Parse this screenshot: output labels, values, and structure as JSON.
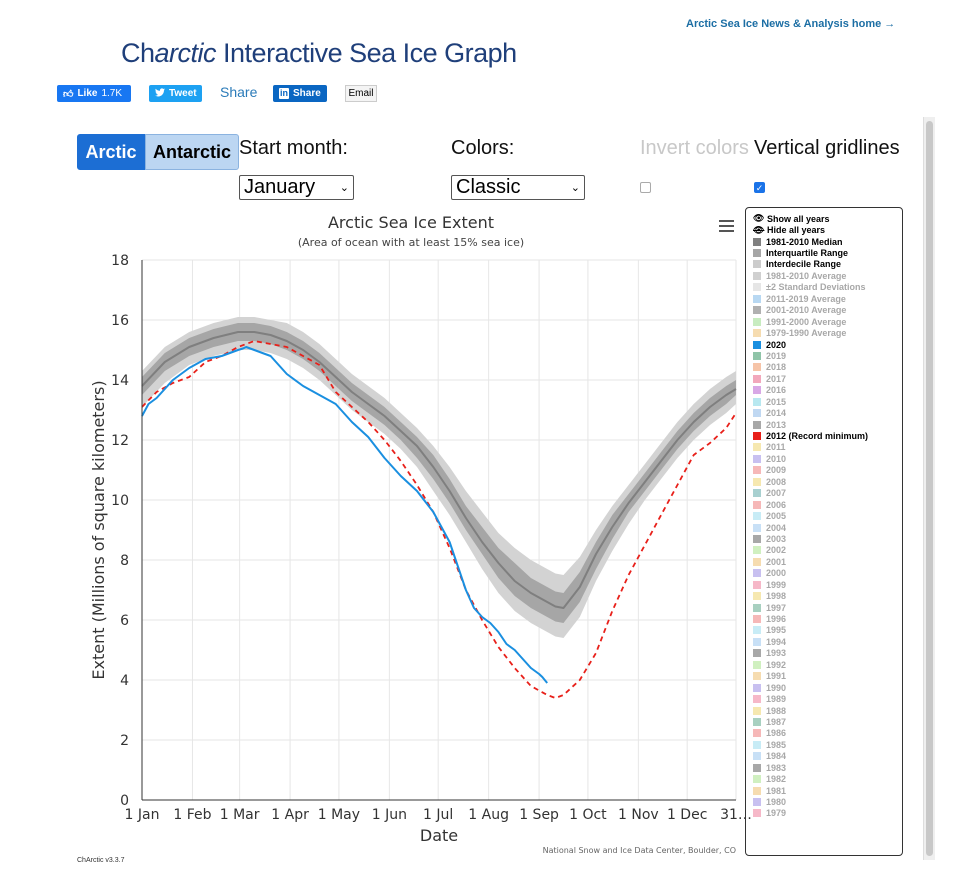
{
  "header": {
    "top_link": "Arctic Sea Ice News & Analysis home →",
    "logo_prefix": "Ch",
    "logo_italic": "arctic",
    "logo_suffix": " Interactive Sea Ice Graph"
  },
  "social": {
    "like_label": "Like",
    "like_count": "1.7K",
    "tweet_label": "Tweet",
    "share_text": "Share",
    "linkedin_label": "Share",
    "email_label": "Email"
  },
  "controls": {
    "arctic": "Arctic",
    "antarctic": "Antarctic",
    "start_month_label": "Start month:",
    "start_month_value": "January",
    "colors_label": "Colors:",
    "colors_value": "Classic",
    "invert_label": "Invert colors",
    "invert_checked": false,
    "gridlines_label": "Vertical gridlines",
    "gridlines_checked": true
  },
  "legend": {
    "show_all": "Show all years",
    "hide_all": "Hide all years",
    "items": [
      {
        "label": "1981-2010 Median",
        "color": "#808080",
        "active": true
      },
      {
        "label": "Interquartile Range",
        "color": "#a6a6a6",
        "active": true
      },
      {
        "label": "Interdecile Range",
        "color": "#cccccc",
        "active": true
      },
      {
        "label": "1981-2010 Average",
        "color": "#d0d0d0",
        "active": false
      },
      {
        "label": "±2 Standard Deviations",
        "color": "#e6e6e6",
        "active": false
      },
      {
        "label": "2011-2019 Average",
        "color": "#b8d8f2",
        "active": false
      },
      {
        "label": "2001-2010 Average",
        "color": "#b0b0b0",
        "active": false
      },
      {
        "label": "1991-2000 Average",
        "color": "#c8ecc0",
        "active": false
      },
      {
        "label": "1979-1990 Average",
        "color": "#f6dcb0",
        "active": false
      },
      {
        "label": "2020",
        "color": "#1a8fe0",
        "active": true
      },
      {
        "label": "2019",
        "color": "#8fc4a8",
        "active": false
      },
      {
        "label": "2018",
        "color": "#f6c4a8",
        "active": false
      },
      {
        "label": "2017",
        "color": "#f2a8bc",
        "active": false
      },
      {
        "label": "2016",
        "color": "#d8a8e6",
        "active": false
      },
      {
        "label": "2015",
        "color": "#b8e8f0",
        "active": false
      },
      {
        "label": "2014",
        "color": "#c0d8f2",
        "active": false
      },
      {
        "label": "2013",
        "color": "#a8a8a8",
        "active": false
      },
      {
        "label": "2012 (Record minimum)",
        "color": "#e8201a",
        "active": true
      },
      {
        "label": "2011",
        "color": "#f6e8b0",
        "active": false
      },
      {
        "label": "2010",
        "color": "#c8c0f0",
        "active": false
      },
      {
        "label": "2009",
        "color": "#f6b8b8",
        "active": false
      },
      {
        "label": "2008",
        "color": "#f6e8b0",
        "active": false
      },
      {
        "label": "2007",
        "color": "#a8d0d0",
        "active": false
      },
      {
        "label": "2006",
        "color": "#f6b8b8",
        "active": false
      },
      {
        "label": "2005",
        "color": "#c8ecf6",
        "active": false
      },
      {
        "label": "2004",
        "color": "#c8e0f6",
        "active": false
      },
      {
        "label": "2003",
        "color": "#a8a8a8",
        "active": false
      },
      {
        "label": "2002",
        "color": "#d0f0c0",
        "active": false
      },
      {
        "label": "2001",
        "color": "#f6dcb0",
        "active": false
      },
      {
        "label": "2000",
        "color": "#c8c0f0",
        "active": false
      },
      {
        "label": "1999",
        "color": "#f6b8c8",
        "active": false
      },
      {
        "label": "1998",
        "color": "#f6e8b0",
        "active": false
      },
      {
        "label": "1997",
        "color": "#a8d0c0",
        "active": false
      },
      {
        "label": "1996",
        "color": "#f6b8b8",
        "active": false
      },
      {
        "label": "1995",
        "color": "#c8ecf6",
        "active": false
      },
      {
        "label": "1994",
        "color": "#c8e0f6",
        "active": false
      },
      {
        "label": "1993",
        "color": "#a8a8a8",
        "active": false
      },
      {
        "label": "1992",
        "color": "#d0f0c0",
        "active": false
      },
      {
        "label": "1991",
        "color": "#f6dcb0",
        "active": false
      },
      {
        "label": "1990",
        "color": "#c8c0f0",
        "active": false
      },
      {
        "label": "1989",
        "color": "#f6b8c8",
        "active": false
      },
      {
        "label": "1988",
        "color": "#f6e8b0",
        "active": false
      },
      {
        "label": "1987",
        "color": "#a8d0c0",
        "active": false
      },
      {
        "label": "1986",
        "color": "#f6b8b8",
        "active": false
      },
      {
        "label": "1985",
        "color": "#c8ecf6",
        "active": false
      },
      {
        "label": "1984",
        "color": "#c8e0f6",
        "active": false
      },
      {
        "label": "1983",
        "color": "#a8a8a8",
        "active": false
      },
      {
        "label": "1982",
        "color": "#d0f0c0",
        "active": false
      },
      {
        "label": "1981",
        "color": "#f6dcb0",
        "active": false
      },
      {
        "label": "1980",
        "color": "#c8c0f0",
        "active": false
      },
      {
        "label": "1979",
        "color": "#f6b8c8",
        "active": false
      }
    ]
  },
  "footer": {
    "credit": "National Snow and Ice Data Center, Boulder, CO",
    "version": "ChArctic v3.3.7"
  },
  "chart_data": {
    "type": "line",
    "title": "Arctic Sea Ice Extent",
    "subtitle": "(Area of ocean with at least 15% sea ice)",
    "xlabel": "Date",
    "ylabel": "Extent (Millions of square kilometers)",
    "xlim": [
      1,
      366
    ],
    "ylim": [
      0,
      18
    ],
    "yticks": [
      0,
      2,
      4,
      6,
      8,
      10,
      12,
      14,
      16,
      18
    ],
    "xticks": [
      {
        "day": 1,
        "label": "1 Jan"
      },
      {
        "day": 32,
        "label": "1 Feb"
      },
      {
        "day": 61,
        "label": "1 Mar"
      },
      {
        "day": 92,
        "label": "1 Apr"
      },
      {
        "day": 122,
        "label": "1 May"
      },
      {
        "day": 153,
        "label": "1 Jun"
      },
      {
        "day": 183,
        "label": "1 Jul"
      },
      {
        "day": 214,
        "label": "1 Aug"
      },
      {
        "day": 245,
        "label": "1 Sep"
      },
      {
        "day": 275,
        "label": "1 Oct"
      },
      {
        "day": 306,
        "label": "1 Nov"
      },
      {
        "day": 336,
        "label": "1 Dec"
      },
      {
        "day": 366,
        "label": "31…"
      }
    ],
    "grid": true,
    "legend_placement": "right",
    "x": [
      1,
      15,
      30,
      45,
      60,
      70,
      80,
      90,
      100,
      110,
      120,
      130,
      140,
      150,
      160,
      170,
      180,
      190,
      200,
      210,
      220,
      230,
      240,
      250,
      255,
      260,
      270,
      280,
      290,
      300,
      310,
      320,
      330,
      340,
      350,
      360,
      366
    ],
    "series": [
      {
        "name": "1981-2010 Median",
        "color": "#7f7f7f",
        "values": [
          13.8,
          14.6,
          15.1,
          15.4,
          15.6,
          15.6,
          15.5,
          15.3,
          15.0,
          14.6,
          14.1,
          13.6,
          13.2,
          12.8,
          12.3,
          11.8,
          11.1,
          10.3,
          9.4,
          8.6,
          7.9,
          7.3,
          6.9,
          6.6,
          6.45,
          6.4,
          7.1,
          8.2,
          9.1,
          9.9,
          10.6,
          11.3,
          12.0,
          12.6,
          13.1,
          13.5,
          13.7
        ]
      },
      {
        "name": "Interquartile Range",
        "color": "#a6a6a6",
        "lower": [
          13.5,
          14.3,
          14.8,
          15.1,
          15.3,
          15.3,
          15.2,
          15.0,
          14.7,
          14.3,
          13.8,
          13.3,
          12.9,
          12.5,
          12.0,
          11.4,
          10.7,
          9.9,
          9.0,
          8.2,
          7.4,
          6.8,
          6.4,
          6.1,
          5.95,
          5.9,
          6.6,
          7.7,
          8.7,
          9.6,
          10.3,
          11.0,
          11.7,
          12.3,
          12.8,
          13.2,
          13.5
        ],
        "upper": [
          14.1,
          14.9,
          15.4,
          15.7,
          15.9,
          15.9,
          15.8,
          15.6,
          15.3,
          14.9,
          14.4,
          13.9,
          13.5,
          13.1,
          12.6,
          12.1,
          11.5,
          10.7,
          9.8,
          9.1,
          8.4,
          7.9,
          7.4,
          7.1,
          6.95,
          6.9,
          7.6,
          8.6,
          9.5,
          10.2,
          10.9,
          11.6,
          12.3,
          12.9,
          13.4,
          13.8,
          14.0
        ]
      },
      {
        "name": "Interdecile Range",
        "color": "#d3d3d3",
        "lower": [
          13.1,
          13.9,
          14.5,
          14.8,
          15.0,
          15.0,
          14.9,
          14.7,
          14.4,
          14.0,
          13.5,
          13.0,
          12.6,
          12.2,
          11.7,
          11.1,
          10.3,
          9.5,
          8.6,
          7.7,
          6.9,
          6.3,
          5.9,
          5.6,
          5.45,
          5.4,
          6.1,
          7.3,
          8.3,
          9.2,
          10.0,
          10.7,
          11.4,
          12.0,
          12.5,
          12.9,
          13.2
        ],
        "upper": [
          14.3,
          15.1,
          15.6,
          15.9,
          16.1,
          16.1,
          16.0,
          15.9,
          15.6,
          15.2,
          14.7,
          14.2,
          13.8,
          13.4,
          12.9,
          12.4,
          11.8,
          11.1,
          10.3,
          9.6,
          8.9,
          8.4,
          8.0,
          7.7,
          7.55,
          7.5,
          8.1,
          9.0,
          9.8,
          10.5,
          11.2,
          11.9,
          12.6,
          13.2,
          13.7,
          14.1,
          14.3
        ]
      },
      {
        "name": "2020",
        "color": "#1a8fe0",
        "x": [
          1,
          5,
          10,
          20,
          30,
          40,
          50,
          55,
          60,
          63,
          65,
          70,
          75,
          80,
          90,
          100,
          110,
          120,
          130,
          140,
          150,
          160,
          170,
          180,
          190,
          200,
          205,
          210,
          215,
          220,
          225,
          230,
          235,
          240,
          245,
          247,
          250
        ],
        "values": [
          12.8,
          13.2,
          13.4,
          14.0,
          14.4,
          14.7,
          14.8,
          14.9,
          15.0,
          15.05,
          15.1,
          15.0,
          14.9,
          14.8,
          14.2,
          13.8,
          13.5,
          13.2,
          12.6,
          12.1,
          11.4,
          10.8,
          10.3,
          9.6,
          8.6,
          7.0,
          6.4,
          6.1,
          5.9,
          5.6,
          5.2,
          5.0,
          4.7,
          4.4,
          4.2,
          4.1,
          3.9
        ]
      },
      {
        "name": "2012 (Record minimum)",
        "color": "#e8201a",
        "dashed": true,
        "x": [
          1,
          10,
          20,
          30,
          40,
          50,
          60,
          70,
          80,
          90,
          100,
          110,
          120,
          130,
          140,
          150,
          160,
          170,
          180,
          190,
          200,
          210,
          220,
          230,
          240,
          250,
          255,
          260,
          270,
          280,
          290,
          300,
          310,
          320,
          330,
          340,
          350,
          360,
          366
        ],
        "values": [
          13.1,
          13.6,
          13.9,
          14.1,
          14.6,
          14.8,
          15.1,
          15.3,
          15.2,
          15.1,
          14.8,
          14.5,
          13.6,
          13.1,
          12.6,
          12.0,
          11.3,
          10.5,
          9.6,
          8.4,
          7.0,
          6.0,
          5.1,
          4.4,
          3.8,
          3.5,
          3.4,
          3.5,
          4.0,
          4.9,
          6.3,
          7.5,
          8.5,
          9.5,
          10.5,
          11.5,
          11.9,
          12.4,
          12.9
        ]
      }
    ]
  }
}
